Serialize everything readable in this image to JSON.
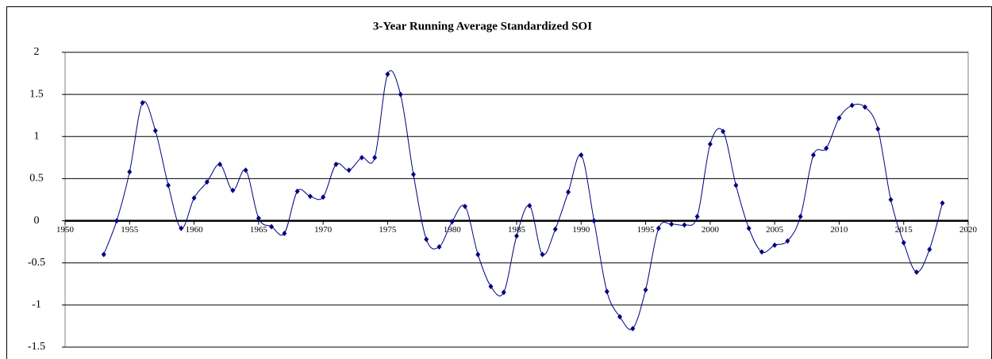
{
  "chart_data": {
    "type": "line",
    "title": "3-Year Running Average Standardized SOI",
    "x": [
      1953,
      1954,
      1955,
      1956,
      1957,
      1958,
      1959,
      1960,
      1961,
      1962,
      1963,
      1964,
      1965,
      1966,
      1967,
      1968,
      1969,
      1970,
      1971,
      1972,
      1973,
      1974,
      1975,
      1976,
      1977,
      1978,
      1979,
      1980,
      1981,
      1982,
      1983,
      1984,
      1985,
      1986,
      1987,
      1988,
      1989,
      1990,
      1991,
      1992,
      1993,
      1994,
      1995,
      1996,
      1997,
      1998,
      1999,
      2000,
      2001,
      2002,
      2003,
      2004,
      2005,
      2006,
      2007,
      2008,
      2009,
      2010,
      2011,
      2012,
      2013,
      2014,
      2015,
      2016,
      2017,
      2018
    ],
    "series": [
      {
        "name": "SOI",
        "color": "#000080",
        "values": [
          -0.4,
          0.0,
          0.58,
          1.4,
          1.07,
          0.42,
          -0.09,
          0.27,
          0.46,
          0.67,
          0.36,
          0.6,
          0.03,
          -0.07,
          -0.15,
          0.35,
          0.29,
          0.28,
          0.67,
          0.6,
          0.75,
          0.75,
          1.74,
          1.5,
          0.55,
          -0.22,
          -0.31,
          -0.01,
          0.17,
          -0.4,
          -0.78,
          -0.85,
          -0.18,
          0.18,
          -0.4,
          -0.1,
          0.34,
          0.78,
          0.0,
          -0.84,
          -1.14,
          -1.28,
          -0.82,
          -0.09,
          -0.04,
          -0.05,
          0.05,
          0.91,
          1.06,
          0.42,
          -0.09,
          -0.37,
          -0.29,
          -0.24,
          0.05,
          0.78,
          0.86,
          1.22,
          1.37,
          1.35,
          1.09,
          0.25,
          -0.26,
          -0.61,
          -0.34,
          0.21
        ]
      }
    ],
    "xlim": [
      1950,
      2020
    ],
    "xticks": [
      1950,
      1955,
      1960,
      1965,
      1970,
      1975,
      1980,
      1985,
      1990,
      1995,
      2000,
      2005,
      2010,
      2015,
      2020
    ],
    "ylim": [
      -1.5,
      2
    ],
    "yticks": [
      -1.5,
      -1,
      -0.5,
      0,
      0.5,
      1,
      1.5,
      2
    ],
    "grid": true,
    "smooth": true
  }
}
